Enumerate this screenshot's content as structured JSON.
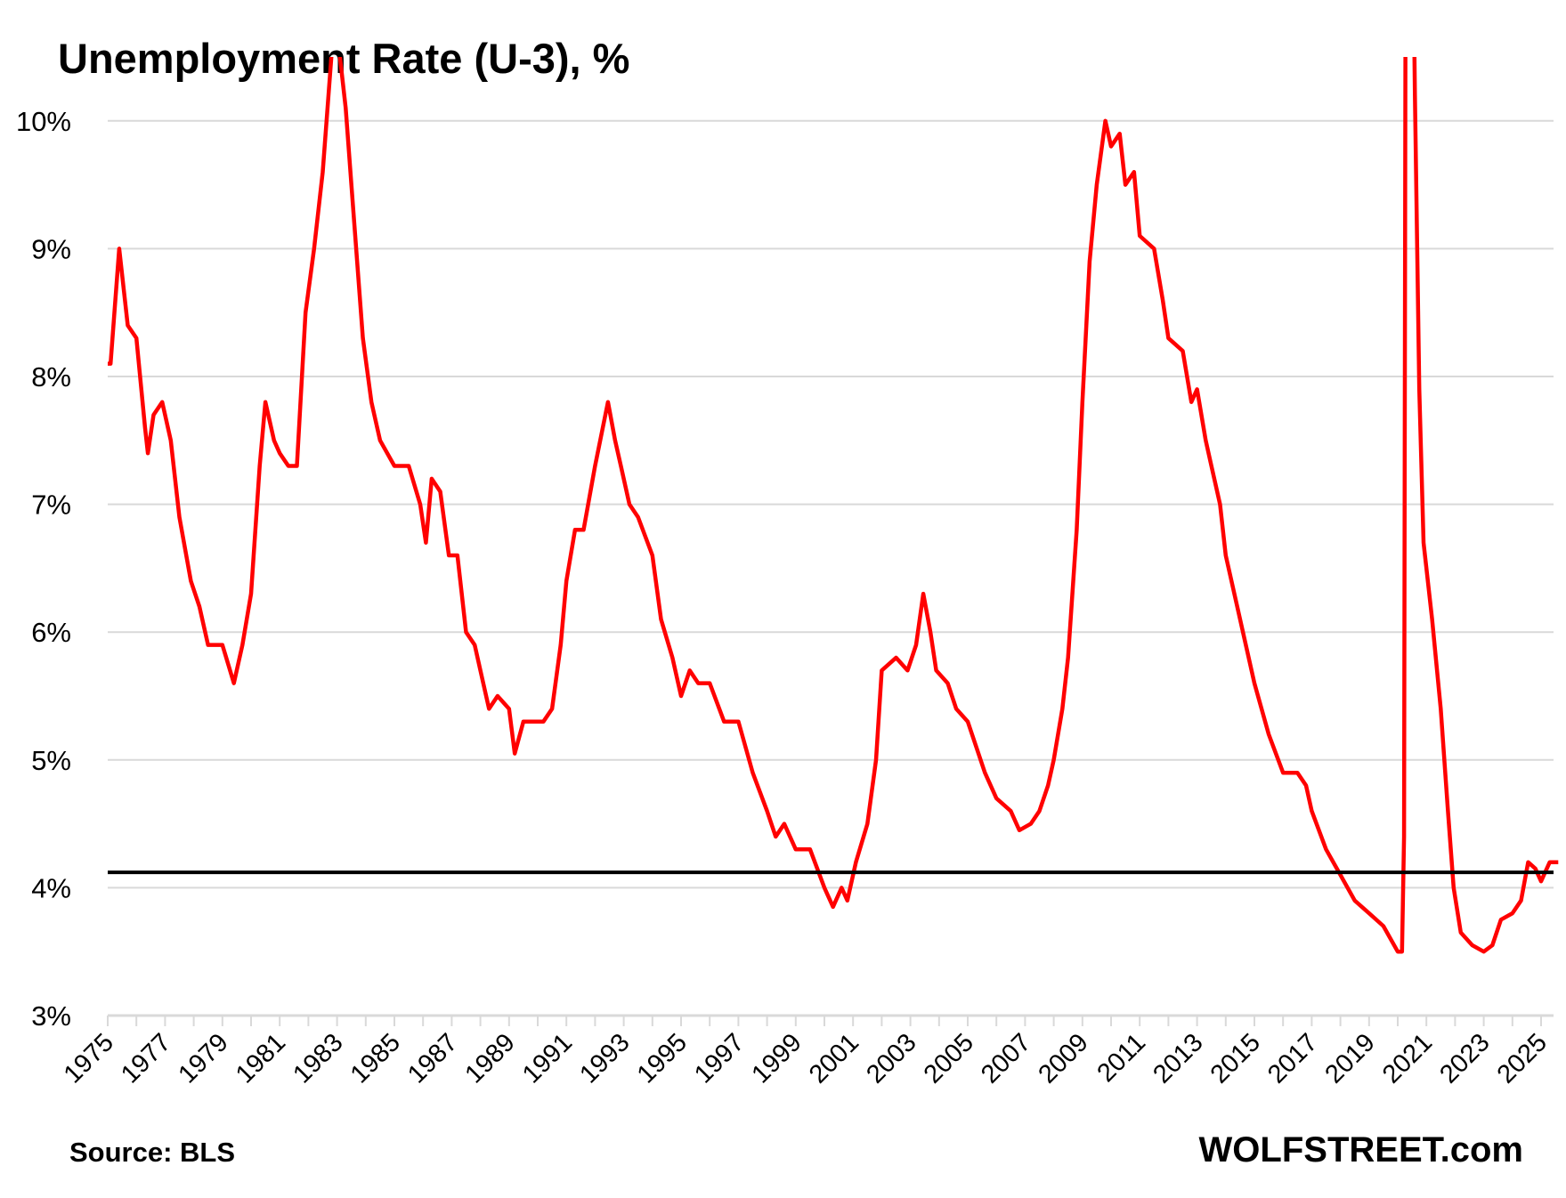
{
  "chart_data": {
    "type": "line",
    "title": "Unemployment Rate (U-3), %",
    "xlabel": "",
    "ylabel": "",
    "ylim": [
      3,
      10.5
    ],
    "xlim": [
      1975,
      2025.8
    ],
    "yticks": [
      3,
      4,
      5,
      6,
      7,
      8,
      9,
      10
    ],
    "ytick_labels": [
      "3%",
      "4%",
      "5%",
      "6%",
      "7%",
      "8%",
      "9%",
      "10%"
    ],
    "xtick_labels": [
      "1975",
      "1977",
      "1979",
      "1981",
      "1983",
      "1985",
      "1987",
      "1989",
      "1991",
      "1993",
      "1995",
      "1997",
      "1999",
      "2001",
      "2003",
      "2005",
      "2007",
      "2009",
      "2011",
      "2013",
      "2015",
      "2017",
      "2019",
      "2021",
      "2023",
      "2025"
    ],
    "grid": true,
    "reference_line": {
      "value": 4.12,
      "color": "#000000"
    },
    "series": [
      {
        "name": "Unemployment Rate (U-3)",
        "color": "#ff0000",
        "points": [
          [
            1975.0,
            8.1
          ],
          [
            1975.1,
            8.1
          ],
          [
            1975.4,
            9.0
          ],
          [
            1975.7,
            8.4
          ],
          [
            1976.0,
            8.3
          ],
          [
            1976.3,
            7.6
          ],
          [
            1976.4,
            7.4
          ],
          [
            1976.6,
            7.7
          ],
          [
            1976.9,
            7.8
          ],
          [
            1977.2,
            7.5
          ],
          [
            1977.5,
            6.9
          ],
          [
            1977.9,
            6.4
          ],
          [
            1978.2,
            6.2
          ],
          [
            1978.5,
            5.9
          ],
          [
            1978.8,
            5.9
          ],
          [
            1979.0,
            5.9
          ],
          [
            1979.4,
            5.6
          ],
          [
            1979.7,
            5.9
          ],
          [
            1980.0,
            6.3
          ],
          [
            1980.3,
            7.3
          ],
          [
            1980.5,
            7.8
          ],
          [
            1980.8,
            7.5
          ],
          [
            1981.0,
            7.4
          ],
          [
            1981.3,
            7.3
          ],
          [
            1981.6,
            7.3
          ],
          [
            1981.9,
            8.5
          ],
          [
            1982.2,
            9.0
          ],
          [
            1982.5,
            9.6
          ],
          [
            1982.8,
            10.5
          ],
          [
            1982.95,
            10.8
          ],
          [
            1983.3,
            10.1
          ],
          [
            1983.5,
            9.5
          ],
          [
            1983.9,
            8.3
          ],
          [
            1984.2,
            7.8
          ],
          [
            1984.5,
            7.5
          ],
          [
            1985.0,
            7.3
          ],
          [
            1985.5,
            7.3
          ],
          [
            1985.9,
            7.0
          ],
          [
            1986.1,
            6.7
          ],
          [
            1986.3,
            7.2
          ],
          [
            1986.6,
            7.1
          ],
          [
            1986.9,
            6.6
          ],
          [
            1987.2,
            6.6
          ],
          [
            1987.5,
            6.0
          ],
          [
            1987.8,
            5.9
          ],
          [
            1988.0,
            5.7
          ],
          [
            1988.3,
            5.4
          ],
          [
            1988.6,
            5.5
          ],
          [
            1989.0,
            5.4
          ],
          [
            1989.2,
            5.05
          ],
          [
            1989.5,
            5.3
          ],
          [
            1989.8,
            5.3
          ],
          [
            1990.2,
            5.3
          ],
          [
            1990.5,
            5.4
          ],
          [
            1990.8,
            5.9
          ],
          [
            1991.0,
            6.4
          ],
          [
            1991.3,
            6.8
          ],
          [
            1991.6,
            6.8
          ],
          [
            1992.0,
            7.3
          ],
          [
            1992.45,
            7.8
          ],
          [
            1992.7,
            7.5
          ],
          [
            1992.9,
            7.3
          ],
          [
            1993.2,
            7.0
          ],
          [
            1993.5,
            6.9
          ],
          [
            1994.0,
            6.6
          ],
          [
            1994.3,
            6.1
          ],
          [
            1994.7,
            5.8
          ],
          [
            1995.0,
            5.5
          ],
          [
            1995.3,
            5.7
          ],
          [
            1995.6,
            5.6
          ],
          [
            1996.0,
            5.6
          ],
          [
            1996.5,
            5.3
          ],
          [
            1997.0,
            5.3
          ],
          [
            1997.5,
            4.9
          ],
          [
            1998.0,
            4.6
          ],
          [
            1998.3,
            4.4
          ],
          [
            1998.6,
            4.5
          ],
          [
            1999.0,
            4.3
          ],
          [
            1999.5,
            4.3
          ],
          [
            2000.0,
            4.0
          ],
          [
            2000.3,
            3.85
          ],
          [
            2000.6,
            4.0
          ],
          [
            2000.8,
            3.9
          ],
          [
            2001.1,
            4.2
          ],
          [
            2001.5,
            4.5
          ],
          [
            2001.8,
            5.0
          ],
          [
            2002.0,
            5.7
          ],
          [
            2002.5,
            5.8
          ],
          [
            2002.9,
            5.7
          ],
          [
            2003.2,
            5.9
          ],
          [
            2003.45,
            6.3
          ],
          [
            2003.7,
            6.0
          ],
          [
            2003.9,
            5.7
          ],
          [
            2004.3,
            5.6
          ],
          [
            2004.6,
            5.4
          ],
          [
            2005.0,
            5.3
          ],
          [
            2005.6,
            4.9
          ],
          [
            2006.0,
            4.7
          ],
          [
            2006.5,
            4.6
          ],
          [
            2006.8,
            4.45
          ],
          [
            2007.2,
            4.5
          ],
          [
            2007.5,
            4.6
          ],
          [
            2007.8,
            4.8
          ],
          [
            2008.0,
            5.0
          ],
          [
            2008.3,
            5.4
          ],
          [
            2008.5,
            5.8
          ],
          [
            2008.8,
            6.8
          ],
          [
            2009.0,
            7.8
          ],
          [
            2009.25,
            8.9
          ],
          [
            2009.5,
            9.5
          ],
          [
            2009.8,
            10.0
          ],
          [
            2010.0,
            9.8
          ],
          [
            2010.3,
            9.9
          ],
          [
            2010.5,
            9.5
          ],
          [
            2010.8,
            9.6
          ],
          [
            2011.0,
            9.1
          ],
          [
            2011.5,
            9.0
          ],
          [
            2011.8,
            8.6
          ],
          [
            2012.0,
            8.3
          ],
          [
            2012.5,
            8.2
          ],
          [
            2012.8,
            7.8
          ],
          [
            2013.0,
            7.9
          ],
          [
            2013.3,
            7.5
          ],
          [
            2013.5,
            7.3
          ],
          [
            2013.8,
            7.0
          ],
          [
            2014.0,
            6.6
          ],
          [
            2014.5,
            6.1
          ],
          [
            2015.0,
            5.6
          ],
          [
            2015.5,
            5.2
          ],
          [
            2016.0,
            4.9
          ],
          [
            2016.5,
            4.9
          ],
          [
            2016.8,
            4.8
          ],
          [
            2017.0,
            4.6
          ],
          [
            2017.5,
            4.3
          ],
          [
            2018.0,
            4.1
          ],
          [
            2018.5,
            3.9
          ],
          [
            2019.0,
            3.8
          ],
          [
            2019.5,
            3.7
          ],
          [
            2020.0,
            3.5
          ],
          [
            2020.15,
            3.5
          ],
          [
            2020.22,
            4.4
          ],
          [
            2020.3,
            14.8
          ],
          [
            2020.45,
            13.0
          ],
          [
            2020.6,
            10.2
          ],
          [
            2020.75,
            7.9
          ],
          [
            2020.9,
            6.7
          ],
          [
            2021.2,
            6.1
          ],
          [
            2021.5,
            5.4
          ],
          [
            2021.75,
            4.6
          ],
          [
            2021.95,
            4.0
          ],
          [
            2022.2,
            3.65
          ],
          [
            2022.6,
            3.55
          ],
          [
            2023.0,
            3.5
          ],
          [
            2023.3,
            3.55
          ],
          [
            2023.6,
            3.75
          ],
          [
            2024.0,
            3.8
          ],
          [
            2024.3,
            3.9
          ],
          [
            2024.55,
            4.2
          ],
          [
            2024.8,
            4.15
          ],
          [
            2025.0,
            4.05
          ],
          [
            2025.3,
            4.2
          ],
          [
            2025.6,
            4.2
          ]
        ]
      }
    ],
    "source": "Source: BLS",
    "brand": "WOLFSTREET.com"
  }
}
